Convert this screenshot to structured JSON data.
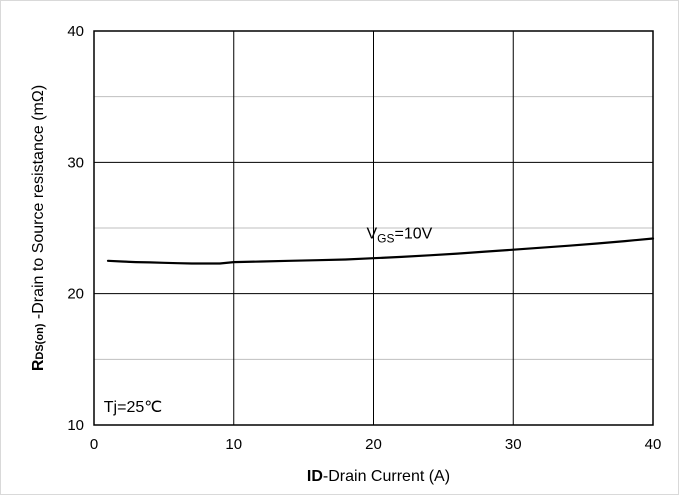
{
  "chart_data": {
    "type": "line",
    "xlabel_bold": "ID",
    "xlabel_rest": "-Drain Current (A)",
    "ylabel_prefix": "R",
    "ylabel_sub": "DS(on)",
    "ylabel_rest": " -Drain to Source resistance (mΩ)",
    "xlim": [
      0,
      40
    ],
    "ylim": [
      10,
      40
    ],
    "x_major_ticks": [
      0,
      10,
      20,
      30,
      40
    ],
    "y_major_ticks": [
      10,
      20,
      30,
      40
    ],
    "x_minor_gridlines": [],
    "y_minor_gridlines": [
      15,
      25,
      35
    ],
    "grid": true,
    "series": [
      {
        "label_main": "V",
        "label_sub": "GS",
        "label_rest": "=10V",
        "label_at": [
          19.5,
          24.2
        ],
        "color": "#000000",
        "x": [
          1,
          2,
          3,
          4,
          5,
          6,
          7,
          8,
          9,
          10,
          12,
          14,
          16,
          18,
          20,
          22,
          24,
          26,
          28,
          30,
          32,
          34,
          36,
          38,
          40
        ],
        "y": [
          22.5,
          22.45,
          22.4,
          22.38,
          22.35,
          22.32,
          22.3,
          22.3,
          22.3,
          22.4,
          22.45,
          22.5,
          22.55,
          22.6,
          22.7,
          22.8,
          22.92,
          23.05,
          23.2,
          23.35,
          23.5,
          23.65,
          23.82,
          24.0,
          24.2
        ]
      }
    ],
    "annotations": [
      {
        "text": "Tj=25℃",
        "at": [
          0.7,
          11.0
        ]
      }
    ]
  }
}
